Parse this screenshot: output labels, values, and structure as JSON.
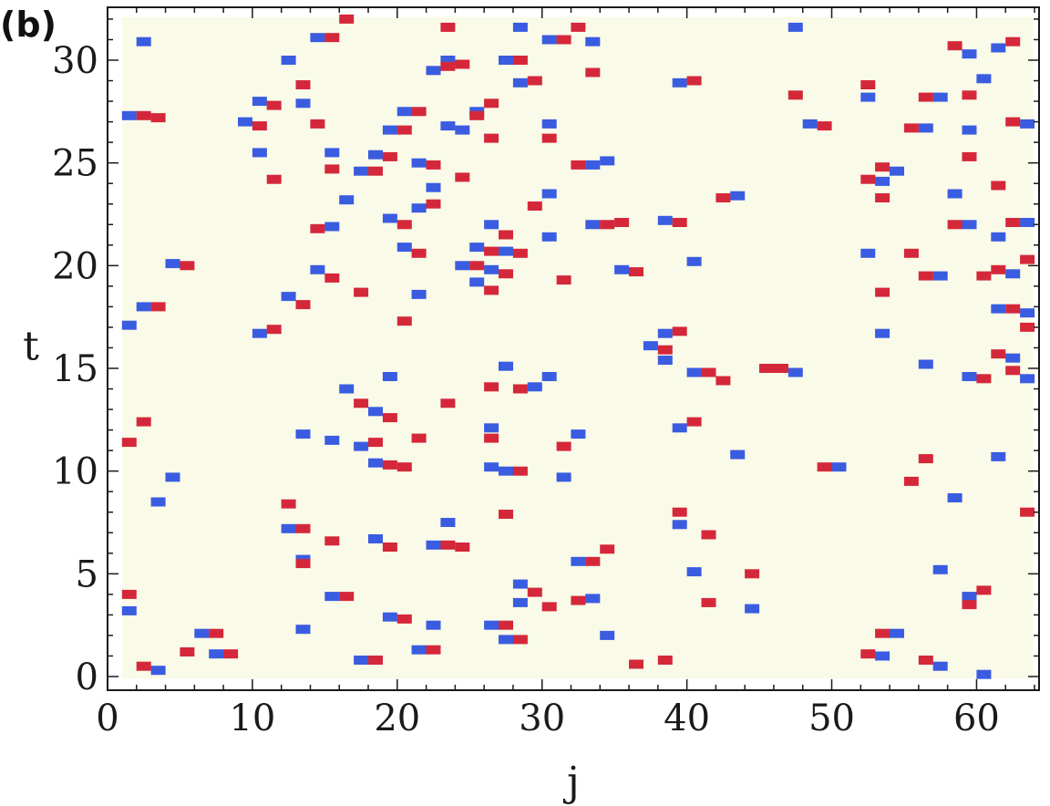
{
  "chart_data": {
    "type": "scatter",
    "panel_label": "(b)",
    "title": "",
    "xlabel": "j",
    "ylabel": "t",
    "xlim": [
      0,
      64
    ],
    "ylim": [
      -0.5,
      32.5
    ],
    "xticks": [
      0,
      10,
      20,
      30,
      40,
      50,
      60
    ],
    "yticks": [
      0,
      5,
      10,
      15,
      20,
      25,
      30
    ],
    "grid": false,
    "legend": "none",
    "colors": {
      "background": "#fafae9",
      "blue": "#3a5ce0",
      "red": "#d4283a",
      "frame": "#1a1a1a"
    },
    "series": [
      {
        "color": "blue",
        "points": [
          [
            1,
            27.3
          ],
          [
            1,
            17.1
          ],
          [
            1,
            3.2
          ],
          [
            2,
            30.9
          ],
          [
            2,
            18
          ],
          [
            3,
            8.5
          ],
          [
            3,
            0.3
          ],
          [
            4,
            20.1
          ],
          [
            4,
            9.7
          ],
          [
            6,
            2.1
          ],
          [
            7,
            1.1
          ],
          [
            9,
            27
          ],
          [
            10,
            28
          ],
          [
            10,
            25.5
          ],
          [
            10,
            16.7
          ],
          [
            12,
            30
          ],
          [
            12,
            18.5
          ],
          [
            12,
            7.2
          ],
          [
            13,
            27.9
          ],
          [
            13,
            11.8
          ],
          [
            13,
            5.7
          ],
          [
            13,
            2.3
          ],
          [
            14,
            31.1
          ],
          [
            14,
            19.8
          ],
          [
            15,
            25.5
          ],
          [
            15,
            21.9
          ],
          [
            15,
            11.5
          ],
          [
            15,
            3.9
          ],
          [
            16,
            23.2
          ],
          [
            16,
            14
          ],
          [
            17,
            24.6
          ],
          [
            17,
            11.2
          ],
          [
            17,
            0.8
          ],
          [
            18,
            25.4
          ],
          [
            18,
            12.9
          ],
          [
            18,
            10.4
          ],
          [
            18,
            6.7
          ],
          [
            19,
            26.6
          ],
          [
            19,
            22.3
          ],
          [
            19,
            14.6
          ],
          [
            19,
            2.9
          ],
          [
            20,
            27.5
          ],
          [
            20,
            20.9
          ],
          [
            21,
            25
          ],
          [
            21,
            22.8
          ],
          [
            21,
            18.6
          ],
          [
            21,
            1.3
          ],
          [
            22,
            29.5
          ],
          [
            22,
            23.8
          ],
          [
            22,
            6.4
          ],
          [
            22,
            2.5
          ],
          [
            23,
            30
          ],
          [
            23,
            26.8
          ],
          [
            23,
            7.5
          ],
          [
            24,
            26.6
          ],
          [
            24,
            20
          ],
          [
            25,
            27.5
          ],
          [
            25,
            20.9
          ],
          [
            25,
            19.2
          ],
          [
            26,
            22
          ],
          [
            26,
            19.8
          ],
          [
            26,
            12.1
          ],
          [
            26,
            10.2
          ],
          [
            26,
            2.5
          ],
          [
            27,
            30
          ],
          [
            27,
            20.7
          ],
          [
            27,
            15.1
          ],
          [
            27,
            10
          ],
          [
            27,
            1.8
          ],
          [
            28,
            31.6
          ],
          [
            28,
            28.9
          ],
          [
            28,
            4.5
          ],
          [
            28,
            3.6
          ],
          [
            29,
            14.1
          ],
          [
            30,
            31
          ],
          [
            30,
            26.9
          ],
          [
            30,
            23.5
          ],
          [
            30,
            21.4
          ],
          [
            30,
            14.6
          ],
          [
            31,
            9.7
          ],
          [
            32,
            11.8
          ],
          [
            32,
            5.6
          ],
          [
            33,
            30.9
          ],
          [
            33,
            22
          ],
          [
            33,
            24.9
          ],
          [
            33,
            3.8
          ],
          [
            34,
            25.1
          ],
          [
            34,
            2
          ],
          [
            35,
            19.8
          ],
          [
            37,
            16.1
          ],
          [
            38,
            22.2
          ],
          [
            38,
            16.7
          ],
          [
            38,
            15.4
          ],
          [
            39,
            28.9
          ],
          [
            39,
            12.1
          ],
          [
            39,
            7.4
          ],
          [
            40,
            20.2
          ],
          [
            40,
            14.8
          ],
          [
            40,
            5.1
          ],
          [
            43,
            23.4
          ],
          [
            43,
            10.8
          ],
          [
            44,
            3.3
          ],
          [
            46,
            15
          ],
          [
            47,
            31.6
          ],
          [
            47,
            14.8
          ],
          [
            48,
            26.9
          ],
          [
            50,
            10.2
          ],
          [
            52,
            28.2
          ],
          [
            52,
            20.6
          ],
          [
            53,
            24.1
          ],
          [
            53,
            16.7
          ],
          [
            53,
            1
          ],
          [
            54,
            24.6
          ],
          [
            54,
            2.1
          ],
          [
            56,
            26.7
          ],
          [
            56,
            15.2
          ],
          [
            57,
            28.2
          ],
          [
            57,
            19.5
          ],
          [
            57,
            5.2
          ],
          [
            57,
            0.5
          ],
          [
            58,
            23.5
          ],
          [
            58,
            8.7
          ],
          [
            59,
            30.3
          ],
          [
            59,
            26.6
          ],
          [
            59,
            22
          ],
          [
            59,
            14.6
          ],
          [
            59,
            3.9
          ],
          [
            60,
            29.1
          ],
          [
            60,
            0.1
          ],
          [
            61,
            30.6
          ],
          [
            61,
            21.4
          ],
          [
            61,
            17.9
          ],
          [
            61,
            10.7
          ],
          [
            62,
            19.6
          ],
          [
            62,
            15.5
          ],
          [
            63,
            26.9
          ],
          [
            63,
            22.1
          ],
          [
            63,
            17.7
          ],
          [
            63,
            14.5
          ]
        ]
      },
      {
        "color": "red",
        "points": [
          [
            1,
            11.4
          ],
          [
            1,
            4
          ],
          [
            2,
            27.3
          ],
          [
            2,
            12.4
          ],
          [
            2,
            0.5
          ],
          [
            3,
            27.2
          ],
          [
            3,
            18
          ],
          [
            5,
            20
          ],
          [
            5,
            1.2
          ],
          [
            7,
            2.1
          ],
          [
            8,
            1.1
          ],
          [
            10,
            26.8
          ],
          [
            11,
            27.8
          ],
          [
            11,
            24.2
          ],
          [
            11,
            16.9
          ],
          [
            12,
            8.4
          ],
          [
            13,
            28.8
          ],
          [
            13,
            18.1
          ],
          [
            13,
            7.2
          ],
          [
            13,
            5.5
          ],
          [
            14,
            26.9
          ],
          [
            14,
            21.8
          ],
          [
            15,
            31.1
          ],
          [
            15,
            24.7
          ],
          [
            15,
            19.4
          ],
          [
            15,
            6.6
          ],
          [
            16,
            32
          ],
          [
            16,
            3.9
          ],
          [
            17,
            18.7
          ],
          [
            17,
            13.3
          ],
          [
            18,
            24.6
          ],
          [
            18,
            11.4
          ],
          [
            18,
            0.8
          ],
          [
            19,
            25.3
          ],
          [
            19,
            12.6
          ],
          [
            19,
            10.3
          ],
          [
            19,
            6.3
          ],
          [
            20,
            26.6
          ],
          [
            20,
            22
          ],
          [
            20,
            17.3
          ],
          [
            20,
            10.2
          ],
          [
            20,
            2.8
          ],
          [
            21,
            27.5
          ],
          [
            21,
            20.6
          ],
          [
            21,
            11.6
          ],
          [
            22,
            24.9
          ],
          [
            22,
            23
          ],
          [
            22,
            1.3
          ],
          [
            23,
            31.6
          ],
          [
            23,
            29.7
          ],
          [
            23,
            13.3
          ],
          [
            23,
            6.4
          ],
          [
            24,
            29.8
          ],
          [
            24,
            24.3
          ],
          [
            24,
            6.3
          ],
          [
            25,
            27.3
          ],
          [
            25,
            20
          ],
          [
            26,
            27.9
          ],
          [
            26,
            26.2
          ],
          [
            26,
            20.7
          ],
          [
            26,
            18.8
          ],
          [
            26,
            14.1
          ],
          [
            26,
            11.6
          ],
          [
            27,
            21.5
          ],
          [
            27,
            19.6
          ],
          [
            27,
            7.9
          ],
          [
            27,
            2.5
          ],
          [
            28,
            30
          ],
          [
            28,
            20.6
          ],
          [
            28,
            14
          ],
          [
            28,
            10
          ],
          [
            28,
            1.8
          ],
          [
            29,
            29
          ],
          [
            29,
            22.9
          ],
          [
            29,
            4.1
          ],
          [
            30,
            26.2
          ],
          [
            30,
            3.4
          ],
          [
            31,
            31
          ],
          [
            31,
            19.3
          ],
          [
            31,
            11.2
          ],
          [
            32,
            31.6
          ],
          [
            32,
            24.9
          ],
          [
            32,
            3.7
          ],
          [
            33,
            29.4
          ],
          [
            33,
            5.6
          ],
          [
            34,
            22
          ],
          [
            34,
            6.2
          ],
          [
            35,
            22.1
          ],
          [
            36,
            19.7
          ],
          [
            36,
            0.6
          ],
          [
            38,
            15.9
          ],
          [
            38,
            0.8
          ],
          [
            39,
            22.1
          ],
          [
            39,
            16.8
          ],
          [
            39,
            8
          ],
          [
            40,
            29
          ],
          [
            40,
            12.4
          ],
          [
            41,
            14.8
          ],
          [
            41,
            6.9
          ],
          [
            41,
            3.6
          ],
          [
            42,
            23.3
          ],
          [
            42,
            14.4
          ],
          [
            44,
            5
          ],
          [
            45,
            15
          ],
          [
            46,
            15
          ],
          [
            47,
            28.3
          ],
          [
            49,
            26.8
          ],
          [
            49,
            10.2
          ],
          [
            52,
            28.8
          ],
          [
            52,
            24.2
          ],
          [
            52,
            1.1
          ],
          [
            53,
            24.8
          ],
          [
            53,
            23.3
          ],
          [
            53,
            18.7
          ],
          [
            53,
            2.1
          ],
          [
            55,
            26.7
          ],
          [
            55,
            20.6
          ],
          [
            55,
            9.5
          ],
          [
            56,
            28.2
          ],
          [
            56,
            19.5
          ],
          [
            56,
            10.6
          ],
          [
            56,
            0.8
          ],
          [
            58,
            30.7
          ],
          [
            58,
            22
          ],
          [
            59,
            28.3
          ],
          [
            59,
            25.3
          ],
          [
            59,
            3.5
          ],
          [
            60,
            19.5
          ],
          [
            60,
            14.5
          ],
          [
            60,
            4.2
          ],
          [
            61,
            23.9
          ],
          [
            61,
            19.8
          ],
          [
            61,
            15.7
          ],
          [
            62,
            30.9
          ],
          [
            62,
            27
          ],
          [
            62,
            22.1
          ],
          [
            62,
            17.9
          ],
          [
            62,
            14.9
          ],
          [
            63,
            20.3
          ],
          [
            63,
            17
          ],
          [
            63,
            8
          ]
        ]
      }
    ]
  }
}
